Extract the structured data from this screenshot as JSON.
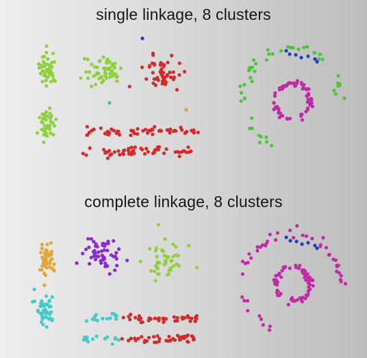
{
  "chart_data": [
    {
      "type": "scatter",
      "title": "single linkage, 8 clusters",
      "xlabel": "",
      "ylabel": "",
      "grid": false,
      "legend": "none",
      "clusters": [
        {
          "shape": "blob",
          "color": "#8fd13c",
          "center": [
            70,
            100
          ],
          "spread": [
            13,
            25
          ],
          "n": 45
        },
        {
          "shape": "blob",
          "color": "#8fd13c",
          "center": [
            68,
            180
          ],
          "spread": [
            13,
            22
          ],
          "n": 40
        },
        {
          "shape": "blob",
          "color": "#8fd13c",
          "center": [
            150,
            102
          ],
          "spread": [
            28,
            22
          ],
          "n": 55
        },
        {
          "shape": "blob",
          "color": "#d42a2a",
          "center": [
            238,
            110
          ],
          "spread": [
            28,
            28
          ],
          "n": 50
        },
        {
          "shape": "band",
          "color": "#d42a2a",
          "x_range": [
            125,
            290
          ],
          "y": 191,
          "jitter": 3,
          "n": 55
        },
        {
          "shape": "band",
          "color": "#d42a2a",
          "x_range": [
            120,
            285
          ],
          "y": 221,
          "jitter": 3,
          "n": 55
        },
        {
          "shape": "ring",
          "color": "#4fc33c",
          "center": [
            425,
            142
          ],
          "radius": 72,
          "jitter": 4,
          "n": 48,
          "arc": [
            110,
            370
          ]
        },
        {
          "shape": "ring",
          "color": "#c02aa6",
          "center": [
            427,
            147
          ],
          "radius": 26,
          "jitter": 2,
          "n": 70,
          "arc": [
            0,
            360
          ]
        },
        {
          "shape": "points",
          "color": "#1f3fbf",
          "points": [
            [
              418,
              74
            ],
            [
              423,
              79
            ],
            [
              432,
              80
            ],
            [
              440,
              84
            ],
            [
              450,
              82
            ],
            [
              460,
              86
            ],
            [
              463,
              90
            ],
            [
              208,
              56
            ]
          ]
        },
        {
          "shape": "points",
          "color": "#3fc0c0",
          "points": [
            [
              160,
              150
            ]
          ]
        },
        {
          "shape": "points",
          "color": "#c9a83a",
          "points": [
            [
              272,
              160
            ]
          ]
        }
      ]
    },
    {
      "type": "scatter",
      "title": "complete linkage, 8 clusters",
      "xlabel": "",
      "ylabel": "",
      "grid": false,
      "legend": "none",
      "clusters": [
        {
          "shape": "blob",
          "color": "#e2a63a",
          "center": [
            68,
            375
          ],
          "spread": [
            14,
            25
          ],
          "n": 45
        },
        {
          "shape": "blob",
          "color": "#45c9c9",
          "center": [
            66,
            450
          ],
          "spread": [
            14,
            22
          ],
          "n": 42
        },
        {
          "shape": "blob",
          "color": "#8a2bd0",
          "center": [
            152,
            372
          ],
          "spread": [
            28,
            23
          ],
          "n": 55
        },
        {
          "shape": "blob",
          "color": "#8fd13c",
          "center": [
            240,
            380
          ],
          "spread": [
            30,
            26
          ],
          "n": 50
        },
        {
          "shape": "band",
          "color": "#45c9c9",
          "x_range": [
            125,
            172
          ],
          "y": 464,
          "jitter": 3,
          "n": 14
        },
        {
          "shape": "band",
          "color": "#45c9c9",
          "x_range": [
            120,
            175
          ],
          "y": 494,
          "jitter": 3,
          "n": 16
        },
        {
          "shape": "band",
          "color": "#d42a2a",
          "x_range": [
            175,
            290
          ],
          "y": 464,
          "jitter": 3,
          "n": 42
        },
        {
          "shape": "band",
          "color": "#d42a2a",
          "x_range": [
            178,
            285
          ],
          "y": 494,
          "jitter": 3,
          "n": 42
        },
        {
          "shape": "ring",
          "color": "#c02aa6",
          "center": [
            425,
            412
          ],
          "radius": 72,
          "jitter": 4,
          "n": 48,
          "arc": [
            110,
            370
          ]
        },
        {
          "shape": "ring",
          "color": "#c02aa6",
          "center": [
            427,
            414
          ],
          "radius": 26,
          "jitter": 2,
          "n": 70,
          "arc": [
            0,
            360
          ]
        },
        {
          "shape": "points",
          "color": "#1f3fbf",
          "points": [
            [
              418,
              346
            ],
            [
              424,
              351
            ],
            [
              433,
              352
            ],
            [
              441,
              356
            ],
            [
              450,
              354
            ],
            [
              460,
              358
            ],
            [
              463,
              362
            ]
          ]
        }
      ]
    }
  ]
}
